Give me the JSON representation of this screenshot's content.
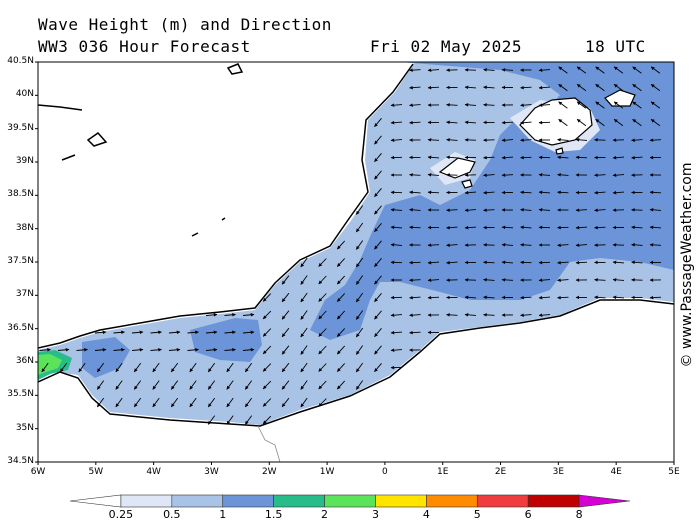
{
  "header": {
    "title": "Wave Height (m) and Direction",
    "model": "WW3 036 Hour Forecast",
    "date": "Fri 02 May 2025",
    "time": "18 UTC"
  },
  "credit": "© www.PassageWeather.com",
  "lat_labels": [
    "40.5N",
    "40N",
    "39.5N",
    "39N",
    "38.5N",
    "38N",
    "37.5N",
    "37N",
    "36.5N",
    "36N",
    "35.5N",
    "35N",
    "34.5N"
  ],
  "lon_labels": [
    "6W",
    "5W",
    "4W",
    "3W",
    "2W",
    "1W",
    "0",
    "1E",
    "2E",
    "3E",
    "4E",
    "5E"
  ],
  "legend": {
    "labels": [
      "0.25",
      "0.5",
      "1",
      "1.5",
      "2",
      "3",
      "4",
      "5",
      "6",
      "8"
    ],
    "colors": [
      "#ffffff",
      "#dfe7f6",
      "#a9c3e6",
      "#6b95d8",
      "#27bd8a",
      "#5ce35c",
      "#ffe400",
      "#ff8c00",
      "#f03c3c",
      "#c00000",
      "#d400d4"
    ]
  },
  "map_colors": {
    "sea_low": "#a9c3e6",
    "sea_mid": "#6b95d8",
    "sea_pale": "#dfe7f6",
    "strait_green": "#5ce35c",
    "strait_teal": "#27bd8a",
    "land": "#ffffff"
  }
}
